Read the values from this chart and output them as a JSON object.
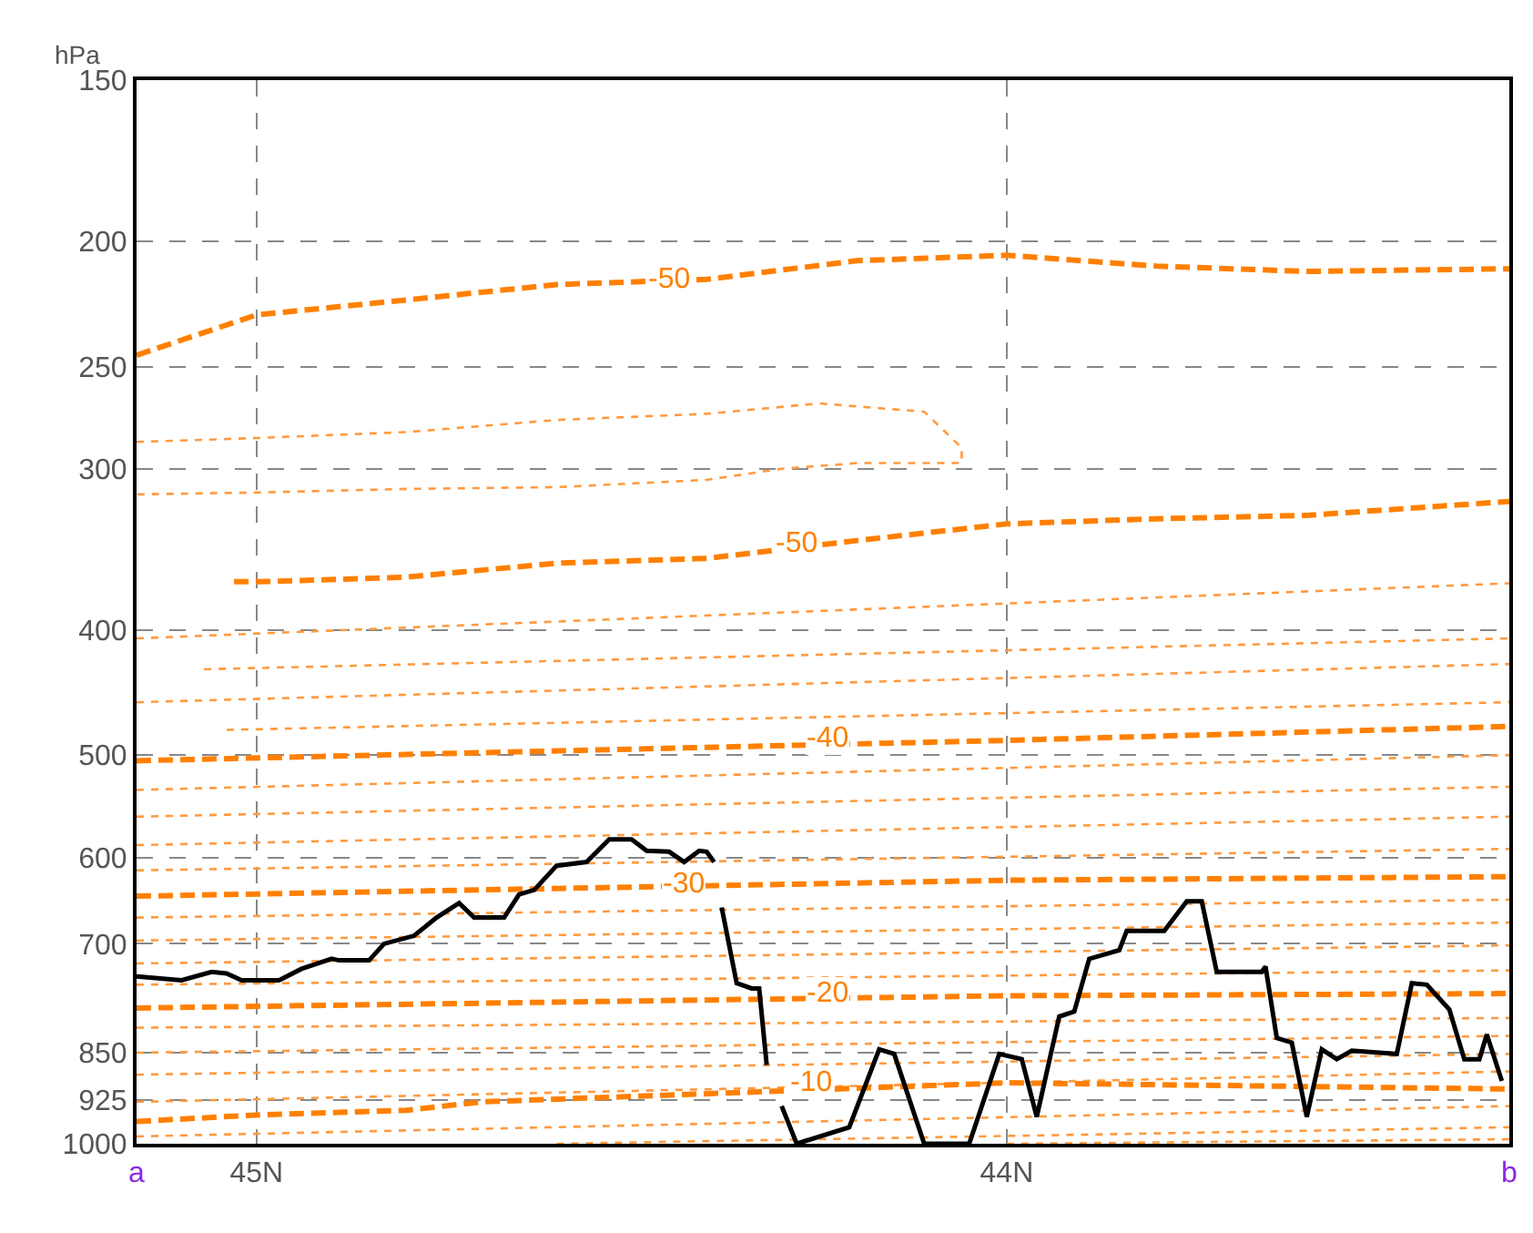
{
  "chart_data": {
    "type": "line",
    "ylabel": "hPa",
    "log": "y",
    "ylim": [
      1000,
      150
    ],
    "yticks": [
      150,
      200,
      250,
      300,
      400,
      500,
      600,
      700,
      850,
      925,
      1000
    ],
    "xlim": [
      45.16,
      43.33
    ],
    "xticks": [
      {
        "value": 45.16,
        "label": "a"
      },
      {
        "value": 45.0,
        "label": "45N"
      },
      {
        "value": 44.0,
        "label": "44N"
      },
      {
        "value": 43.33,
        "label": "b"
      }
    ],
    "grid": true,
    "series": [
      {
        "color": "#ff8000",
        "line_style": "dashed",
        "x": [
          45.16,
          45.0,
          44.8,
          44.6,
          44.4,
          44.2,
          44.0,
          43.8,
          43.6,
          43.33
        ],
        "values": [
          245,
          228,
          222,
          216,
          214,
          207,
          205,
          209,
          211,
          210
        ]
      },
      {
        "color": "#ff9a40",
        "line_style": "dotted",
        "x": [
          45.16,
          45.0,
          44.8,
          44.6,
          44.4,
          44.25,
          44.11,
          44.06,
          44.06,
          44.2,
          44.3,
          44.4,
          44.6,
          44.8,
          45.0,
          45.16
        ],
        "values": [
          286,
          284,
          281,
          275,
          272,
          267,
          271,
          289,
          297,
          297,
          300,
          306,
          310,
          311,
          313,
          314
        ]
      },
      {
        "color": "#ff8000",
        "line_style": "dashed",
        "x": [
          45.03,
          45.0,
          44.8,
          44.6,
          44.4,
          44.2,
          44.0,
          43.8,
          43.6,
          43.33
        ],
        "values": [
          367,
          367,
          364,
          355,
          352,
          341,
          331,
          328,
          326,
          318
        ]
      },
      {
        "color": "#ff9a40",
        "line_style": "dotted",
        "x": [
          45.16,
          43.33
        ],
        "values": [
          406,
          368
        ]
      },
      {
        "color": "#ff9a40",
        "line_style": "dotted",
        "x": [
          45.07,
          43.33
        ],
        "values": [
          429,
          406
        ]
      },
      {
        "color": "#ff9a40",
        "line_style": "dotted",
        "x": [
          45.16,
          43.33
        ],
        "values": [
          455,
          425
        ]
      },
      {
        "color": "#ff9a40",
        "line_style": "dotted",
        "x": [
          45.04,
          43.33
        ],
        "values": [
          478,
          455
        ]
      },
      {
        "color": "#ff8000",
        "line_style": "dashed",
        "x": [
          45.16,
          44.0,
          43.33
        ],
        "values": [
          505,
          487,
          475
        ]
      },
      {
        "color": "#ff9a40",
        "line_style": "dotted",
        "x": [
          45.16,
          43.33
        ],
        "values": [
          532,
          500
        ]
      },
      {
        "color": "#ff9a40",
        "line_style": "dotted",
        "x": [
          45.16,
          43.33
        ],
        "values": [
          558,
          529
        ]
      },
      {
        "color": "#ff9a40",
        "line_style": "dotted",
        "x": [
          45.16,
          43.33
        ],
        "values": [
          587,
          558
        ]
      },
      {
        "color": "#ff9a40",
        "line_style": "dotted",
        "x": [
          45.16,
          43.33
        ],
        "values": [
          614,
          591
        ]
      },
      {
        "color": "#ff8000",
        "line_style": "dashed",
        "x": [
          45.16,
          44.0,
          43.33
        ],
        "values": [
          643,
          625,
          621
        ]
      },
      {
        "color": "#ff9a40",
        "line_style": "dotted",
        "x": [
          45.16,
          43.33
        ],
        "values": [
          668,
          647
        ]
      },
      {
        "color": "#ff9a40",
        "line_style": "dotted",
        "x": [
          45.16,
          43.33
        ],
        "values": [
          696,
          674
        ]
      },
      {
        "color": "#ff9a40",
        "line_style": "dotted",
        "x": [
          45.16,
          43.33
        ],
        "values": [
          725,
          702
        ]
      },
      {
        "color": "#ff9a40",
        "line_style": "dotted",
        "x": [
          45.16,
          43.33
        ],
        "values": [
          753,
          734
        ]
      },
      {
        "color": "#ff8000",
        "line_style": "dashed",
        "x": [
          45.16,
          44.0,
          43.33
        ],
        "values": [
          785,
          768,
          765
        ]
      },
      {
        "color": "#ff9a40",
        "line_style": "dotted",
        "x": [
          45.16,
          43.33
        ],
        "values": [
          813,
          799
        ]
      },
      {
        "color": "#ff9a40",
        "line_style": "dotted",
        "x": [
          45.16,
          43.33
        ],
        "values": [
          850,
          825
        ]
      },
      {
        "color": "#ff9a40",
        "line_style": "dotted",
        "x": [
          45.16,
          43.33
        ],
        "values": [
          884,
          852
        ]
      },
      {
        "color": "#ff9a40",
        "line_style": "dotted",
        "x": [
          45.16,
          43.33
        ],
        "values": [
          928,
          879
        ]
      },
      {
        "color": "#ff8000",
        "line_style": "dashed",
        "x": [
          45.16,
          45.0,
          44.8,
          44.7,
          44.0,
          43.33
        ],
        "values": [
          961,
          950,
          942,
          928,
          897,
          907
        ]
      },
      {
        "color": "#ff9a40",
        "line_style": "dotted",
        "x": [
          45.16,
          43.33
        ],
        "values": [
          987,
          935
        ]
      },
      {
        "color": "#ff9a40",
        "line_style": "dotted",
        "x": [
          44.6,
          43.33
        ],
        "values": [
          1000,
          971
        ]
      },
      {
        "color": "#ff9a40",
        "line_style": "dotted",
        "x": [
          44.0,
          43.33
        ],
        "values": [
          1000,
          992
        ]
      },
      {
        "color": "#000000",
        "line_style": "solid",
        "x": [
          45.16,
          45.1,
          45.06,
          45.04,
          45.02,
          44.97,
          44.94,
          44.9,
          44.89,
          44.85,
          44.83,
          44.79,
          44.76,
          44.73,
          44.71,
          44.67,
          44.65,
          44.63,
          44.6,
          44.56,
          44.53,
          44.5,
          44.48,
          44.45,
          44.43,
          44.41,
          44.4,
          44.39,
          44.385,
          44.38,
          44.36,
          44.34,
          44.33,
          44.32,
          44.31,
          44.3,
          44.28,
          44.21,
          44.17,
          44.15,
          44.11,
          44.05,
          44.01,
          43.98,
          43.96,
          43.93,
          43.91,
          43.89,
          43.85,
          43.84,
          43.79,
          43.76,
          43.74,
          43.72,
          43.66,
          43.655,
          43.64,
          43.62,
          43.6,
          43.58,
          43.56,
          43.54,
          43.48,
          43.46,
          43.44,
          43.41,
          43.39,
          43.37,
          43.36,
          43.34
        ],
        "values": [
          742,
          747,
          736,
          738,
          747,
          747,
          732,
          719,
          721,
          721,
          700,
          690,
          668,
          651,
          668,
          668,
          641,
          636,
          609,
          605,
          581,
          581,
          593,
          594,
          605,
          593,
          594,
          605,
          null,
          656,
          751,
          758,
          758,
          869,
          null,
          935,
          1000,
          971,
          845,
          852,
          1000,
          1000,
          852,
          860,
          953,
          797,
          790,
          719,
          708,
          684,
          684,
          649,
          649,
          736,
          736,
          729,
          828,
          835,
          953,
          845,
          860,
          847,
          852,
          751,
          753,
          787,
          860,
          860,
          823,
          894
        ]
      }
    ],
    "annotations": [
      {
        "text": "-50",
        "x": 44.45,
        "y": 214
      },
      {
        "text": "-50",
        "x": 44.28,
        "y": 343
      },
      {
        "text": "-40",
        "x": 44.24,
        "y": 485
      },
      {
        "text": "-30",
        "x": 44.43,
        "y": 629
      },
      {
        "text": "-20",
        "x": 44.24,
        "y": 765
      },
      {
        "text": "-10",
        "x": 44.26,
        "y": 897
      }
    ]
  }
}
